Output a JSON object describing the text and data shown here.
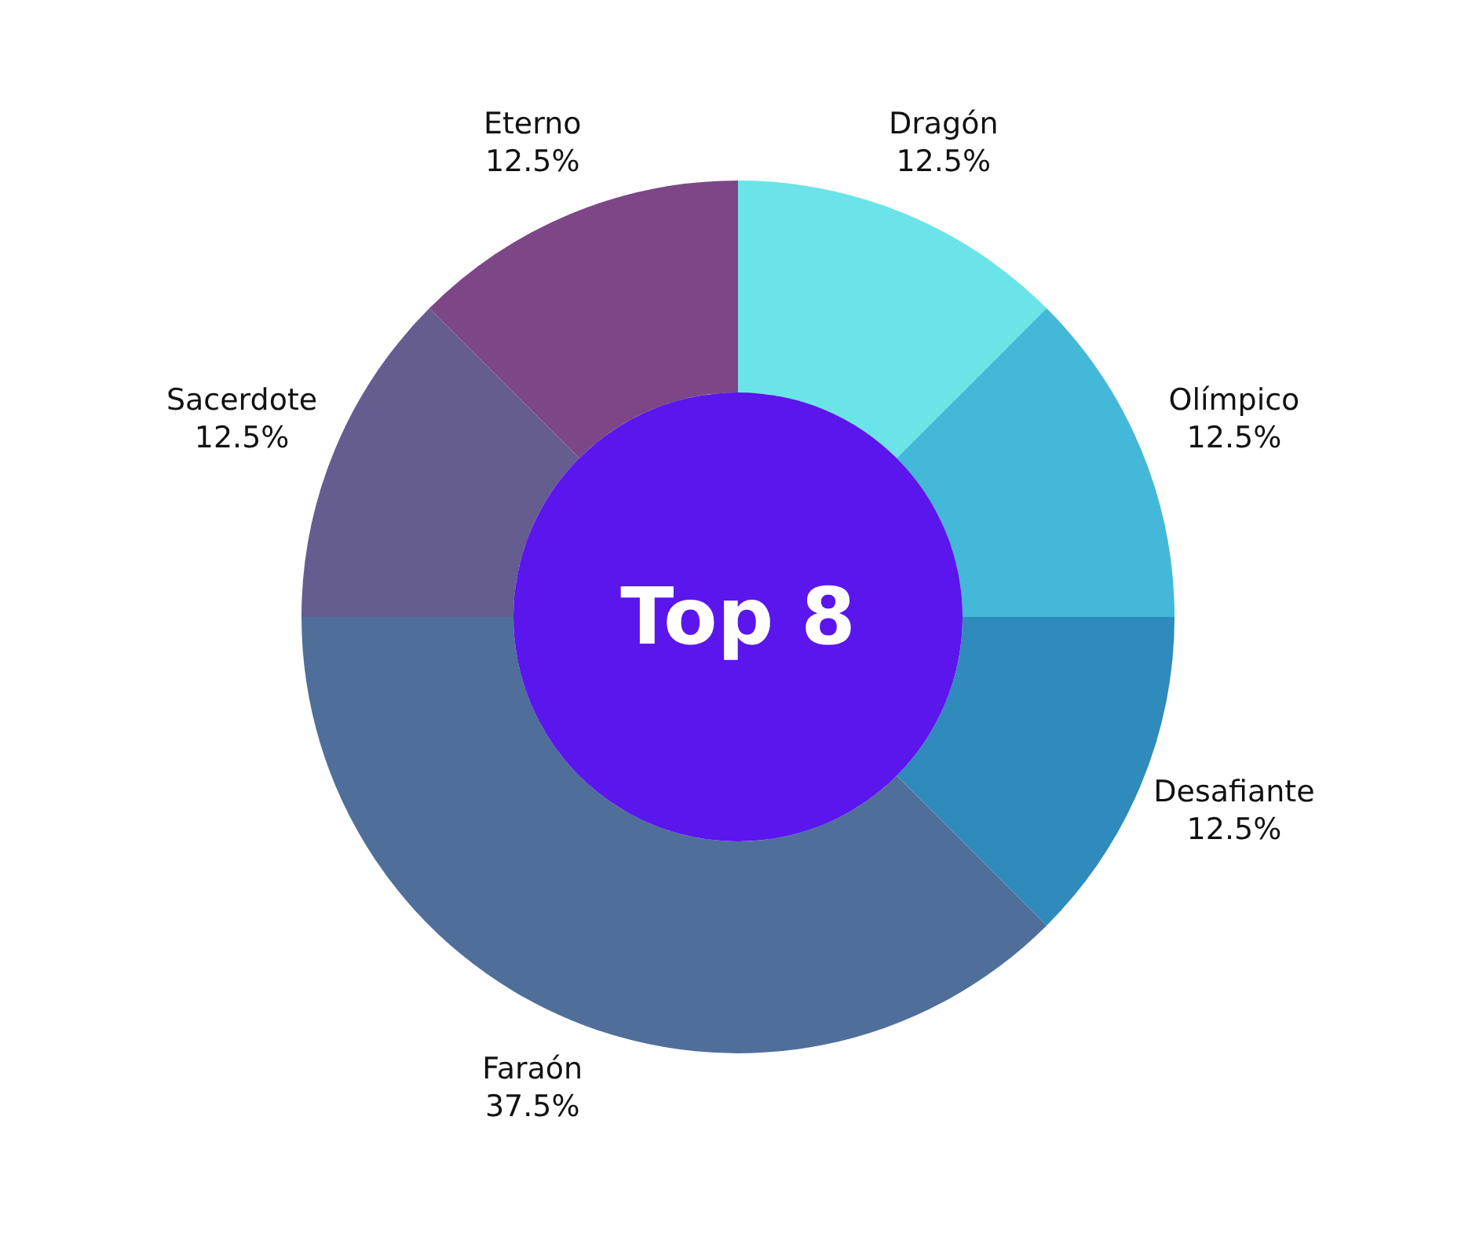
{
  "chart_data": {
    "type": "donut",
    "title": "Top 8",
    "categories": [
      "Dragón",
      "Olímpico",
      "Desafiante",
      "Faraón",
      "Sacerdote",
      "Eterno"
    ],
    "values": [
      12.5,
      12.5,
      12.5,
      37.5,
      12.5,
      12.5
    ],
    "value_labels": [
      "12.5%",
      "12.5%",
      "12.5%",
      "37.5%",
      "12.5%",
      "12.5%"
    ],
    "colors": [
      "#6ae4e8",
      "#44b8d8",
      "#2e8bbb",
      "#4f6f9a",
      "#655c8f",
      "#7d4787"
    ],
    "legend": false
  }
}
